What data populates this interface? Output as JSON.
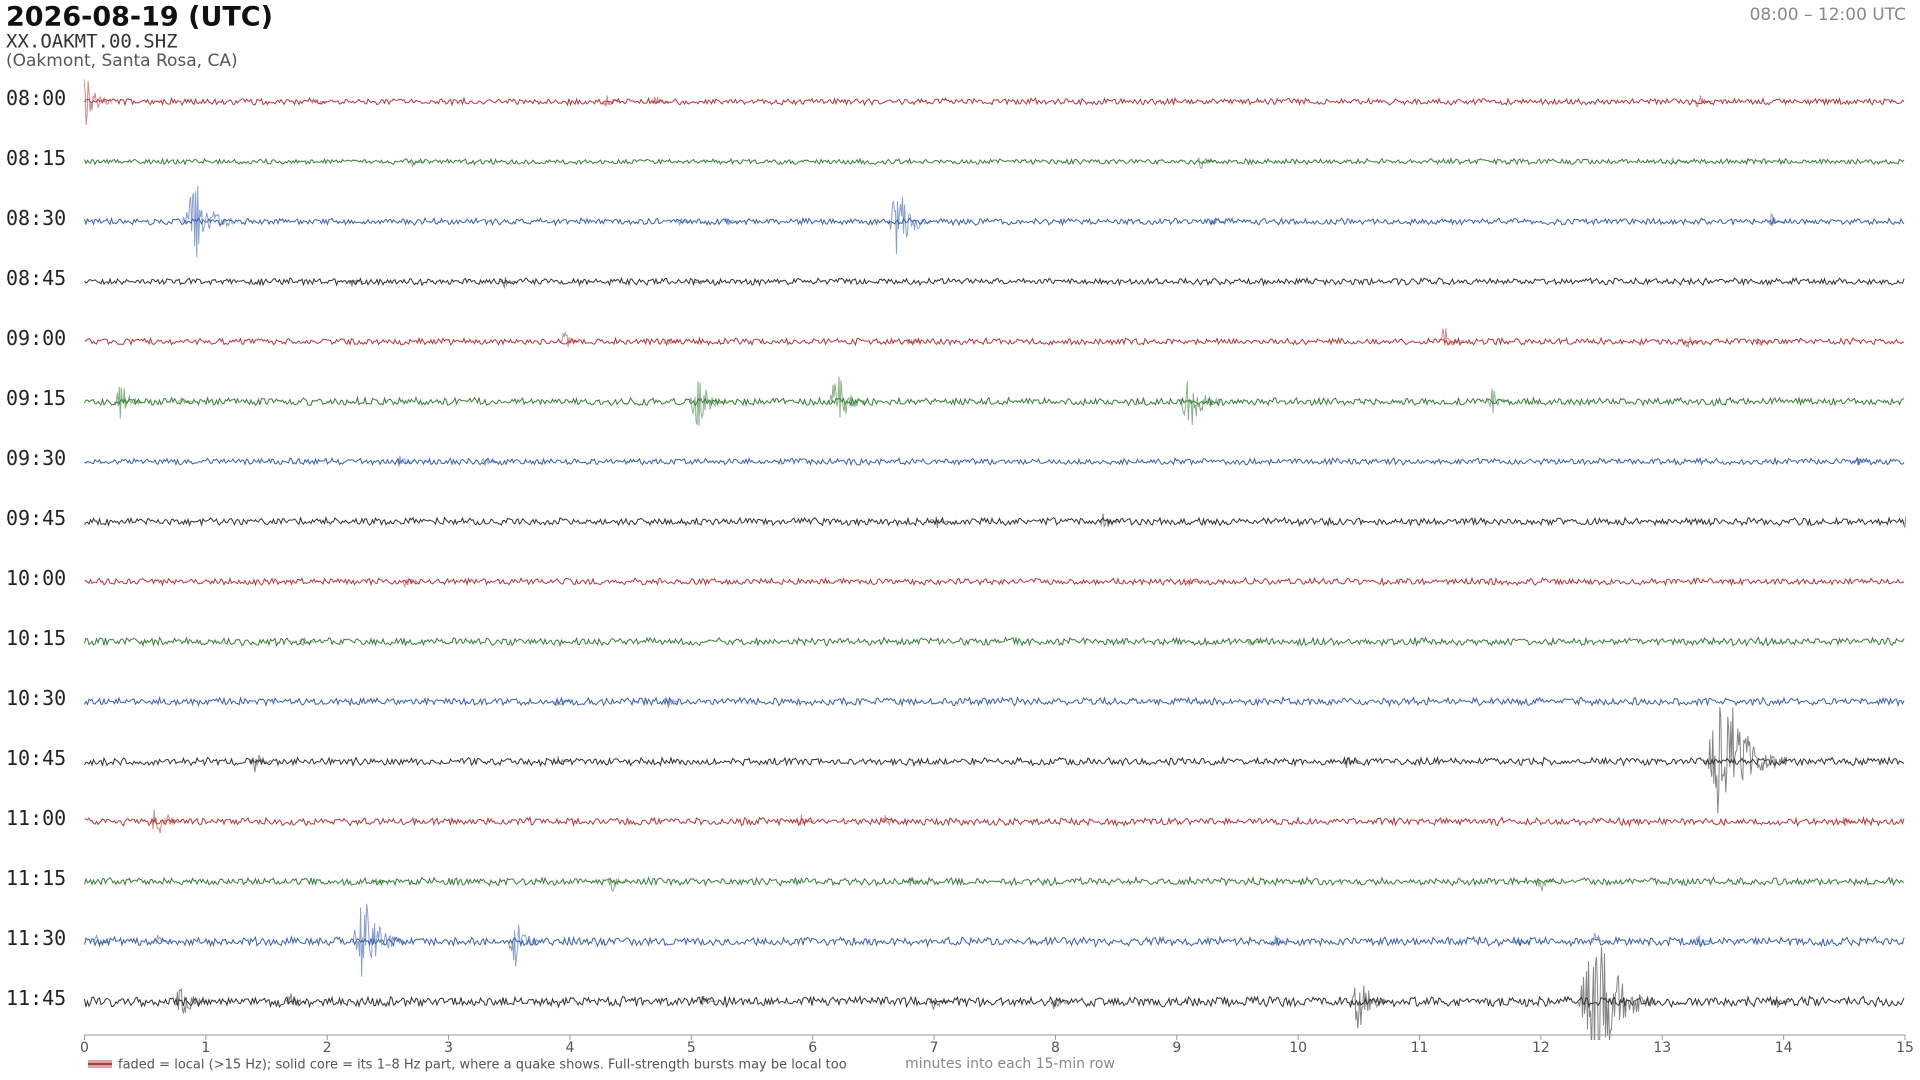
{
  "chart_data": {
    "type": "helicorder",
    "title": "2026-08-19  (UTC)",
    "subtitle": "XX.OAKMT.00.SHZ",
    "location": "(Oakmont, Santa Rosa, CA)",
    "time_range": "08:00 – 12:00 UTC",
    "xlabel": "minutes into each 15-min row",
    "legend_text": "faded = local (>15 Hz); solid core = its 1–8 Hz part, where a quake shows. Full-strength bursts may be local too",
    "xlim": [
      0,
      15
    ],
    "xticks": [
      0,
      1,
      2,
      3,
      4,
      5,
      6,
      7,
      8,
      9,
      10,
      11,
      12,
      13,
      14,
      15
    ],
    "rows": [
      {
        "label": "08:00",
        "color": "#b03a3a",
        "noise": 0.06,
        "events": [
          {
            "minute": 0,
            "amplitude": 0.5
          },
          {
            "minute": 1.9,
            "amplitude": 0.1
          },
          {
            "minute": 4.3,
            "amplitude": 0.15
          },
          {
            "minute": 4.7,
            "amplitude": 0.15
          },
          {
            "minute": 13.3,
            "amplitude": 0.15
          }
        ]
      },
      {
        "label": "08:15",
        "color": "#3a7d3a",
        "noise": 0.05,
        "events": [
          {
            "minute": 2.7,
            "amplitude": 0.1
          },
          {
            "minute": 9.2,
            "amplitude": 0.15
          },
          {
            "minute": 13.1,
            "amplitude": 0.1
          }
        ]
      },
      {
        "label": "08:30",
        "color": "#3a62a8",
        "noise": 0.06,
        "events": [
          {
            "minute": 0.9,
            "amplitude": 0.8
          },
          {
            "minute": 4.9,
            "amplitude": 0.1
          },
          {
            "minute": 5.3,
            "amplitude": 0.1
          },
          {
            "minute": 6.7,
            "amplitude": 0.65
          },
          {
            "minute": 9.3,
            "amplitude": 0.1
          },
          {
            "minute": 13.9,
            "amplitude": 0.15
          }
        ]
      },
      {
        "label": "08:45",
        "color": "#333333",
        "noise": 0.06,
        "events": [
          {
            "minute": 2.2,
            "amplitude": 0.1
          },
          {
            "minute": 3.45,
            "amplitude": 0.12
          },
          {
            "minute": 5.05,
            "amplitude": 0.1
          }
        ]
      },
      {
        "label": "09:00",
        "color": "#b03a3a",
        "noise": 0.06,
        "events": [
          {
            "minute": 3.95,
            "amplitude": 0.2
          },
          {
            "minute": 4.8,
            "amplitude": 0.1
          },
          {
            "minute": 6.8,
            "amplitude": 0.1
          },
          {
            "minute": 11.2,
            "amplitude": 0.3
          },
          {
            "minute": 13.2,
            "amplitude": 0.15
          },
          {
            "minute": 13.8,
            "amplitude": 0.12
          }
        ]
      },
      {
        "label": "09:15",
        "color": "#3a7d3a",
        "noise": 0.07,
        "events": [
          {
            "minute": 0.3,
            "amplitude": 0.35
          },
          {
            "minute": 0.8,
            "amplitude": 0.1
          },
          {
            "minute": 5.05,
            "amplitude": 0.5
          },
          {
            "minute": 6.2,
            "amplitude": 0.55
          },
          {
            "minute": 9.1,
            "amplitude": 0.6
          },
          {
            "minute": 11.6,
            "amplitude": 0.25
          }
        ]
      },
      {
        "label": "09:30",
        "color": "#3a62a8",
        "noise": 0.06,
        "events": [
          {
            "minute": 2.6,
            "amplitude": 0.15
          },
          {
            "minute": 3.3,
            "amplitude": 0.12
          },
          {
            "minute": 14.6,
            "amplitude": 0.1
          }
        ]
      },
      {
        "label": "09:45",
        "color": "#333333",
        "noise": 0.07,
        "events": [
          {
            "minute": 7.0,
            "amplitude": 0.2
          },
          {
            "minute": 8.4,
            "amplitude": 0.2
          },
          {
            "minute": 15,
            "amplitude": 0.15
          }
        ]
      },
      {
        "label": "10:00",
        "color": "#b03a3a",
        "noise": 0.06,
        "events": [
          {
            "minute": 2.65,
            "amplitude": 0.15
          },
          {
            "minute": 9.1,
            "amplitude": 0.1
          }
        ]
      },
      {
        "label": "10:15",
        "color": "#3a7d3a",
        "noise": 0.07,
        "events": [
          {
            "minute": 1.8,
            "amplitude": 0.1
          },
          {
            "minute": 9.6,
            "amplitude": 0.1
          }
        ]
      },
      {
        "label": "10:30",
        "color": "#3a62a8",
        "noise": 0.07,
        "events": [
          {
            "minute": 3.9,
            "amplitude": 0.12
          },
          {
            "minute": 4.8,
            "amplitude": 0.12
          }
        ]
      },
      {
        "label": "10:45",
        "color": "#333333",
        "noise": 0.07,
        "events": [
          {
            "minute": 1.4,
            "amplitude": 0.25
          },
          {
            "minute": 3.9,
            "amplitude": 0.1
          },
          {
            "minute": 10.4,
            "amplitude": 0.15
          },
          {
            "minute": 13.5,
            "amplitude": 1.4
          }
        ]
      },
      {
        "label": "11:00",
        "color": "#b03a3a",
        "noise": 0.07,
        "events": [
          {
            "minute": 0.6,
            "amplitude": 0.4
          },
          {
            "minute": 5.9,
            "amplitude": 0.15
          },
          {
            "minute": 6.6,
            "amplitude": 0.15
          },
          {
            "minute": 14.5,
            "amplitude": 0.1
          }
        ]
      },
      {
        "label": "11:15",
        "color": "#3a7d3a",
        "noise": 0.07,
        "events": [
          {
            "minute": 2.4,
            "amplitude": 0.1
          },
          {
            "minute": 4.35,
            "amplitude": 0.2
          },
          {
            "minute": 6.8,
            "amplitude": 0.1
          },
          {
            "minute": 12.0,
            "amplitude": 0.2
          }
        ]
      },
      {
        "label": "11:30",
        "color": "#3a62a8",
        "noise": 0.08,
        "events": [
          {
            "minute": 0.1,
            "amplitude": 0.15
          },
          {
            "minute": 0.6,
            "amplitude": 0.12
          },
          {
            "minute": 2.3,
            "amplitude": 0.8
          },
          {
            "minute": 3.55,
            "amplitude": 0.45
          },
          {
            "minute": 9.8,
            "amplitude": 0.15
          },
          {
            "minute": 11.8,
            "amplitude": 0.15
          },
          {
            "minute": 12.45,
            "amplitude": 0.2
          },
          {
            "minute": 13.3,
            "amplitude": 0.15
          }
        ]
      },
      {
        "label": "11:45",
        "color": "#333333",
        "noise": 0.09,
        "events": [
          {
            "minute": 0.8,
            "amplitude": 0.4
          },
          {
            "minute": 1.7,
            "amplitude": 0.2
          },
          {
            "minute": 5.1,
            "amplitude": 0.12
          },
          {
            "minute": 7.0,
            "amplitude": 0.2
          },
          {
            "minute": 8.0,
            "amplitude": 0.2
          },
          {
            "minute": 10.5,
            "amplitude": 0.55
          },
          {
            "minute": 12.45,
            "amplitude": 1.3
          },
          {
            "minute": 13.95,
            "amplitude": 0.12
          }
        ]
      }
    ]
  }
}
